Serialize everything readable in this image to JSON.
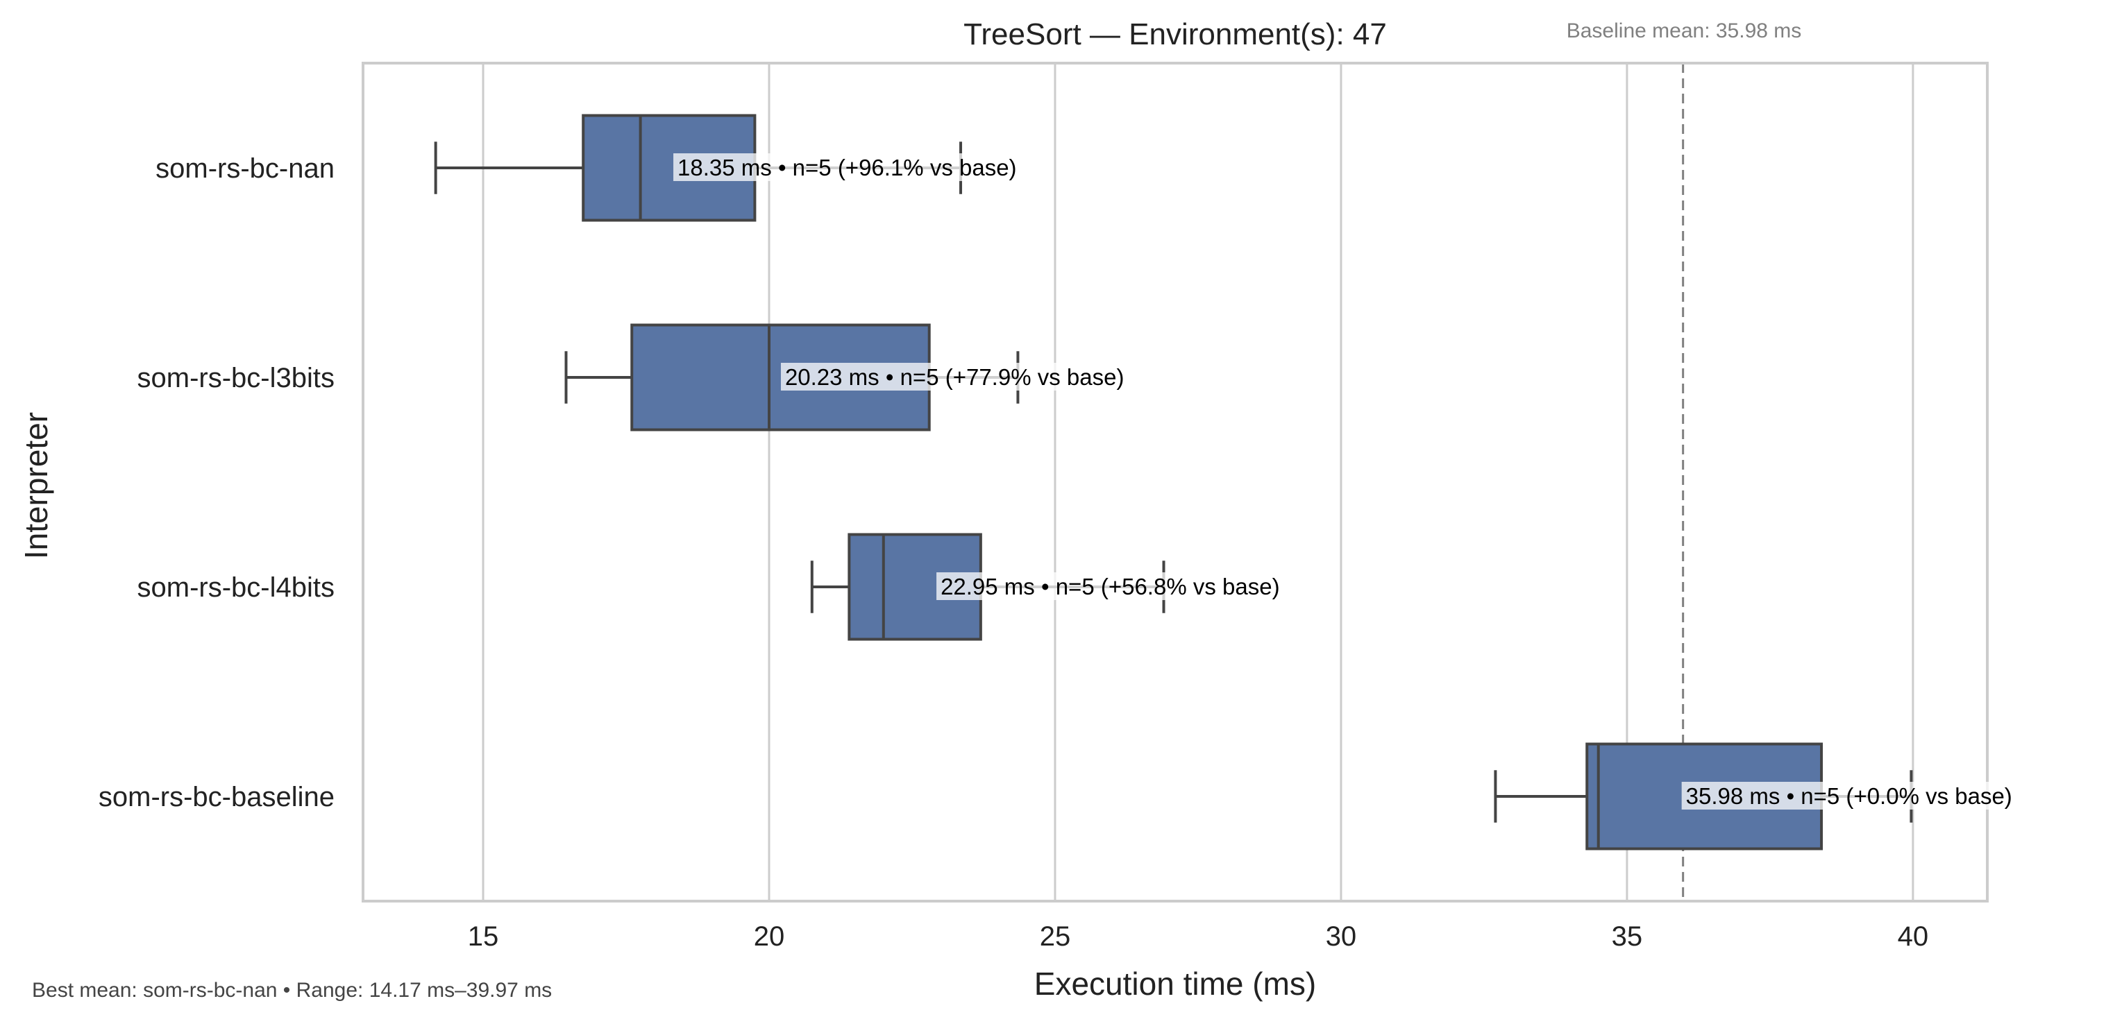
{
  "chart_data": {
    "type": "box",
    "title": "TreeSort — Environment(s): 47",
    "xlabel": "Execution time (ms)",
    "ylabel": "Interpreter",
    "xlim": [
      12.9,
      41.3
    ],
    "xticks": [
      15,
      20,
      25,
      30,
      35,
      40
    ],
    "grid": "vertical",
    "orientation": "horizontal",
    "box_color": "#5975a4",
    "edge_color": "#444444",
    "categories": [
      "som-rs-bc-nan",
      "som-rs-bc-l3bits",
      "som-rs-bc-l4bits",
      "som-rs-bc-baseline"
    ],
    "boxes": [
      {
        "category": "som-rs-bc-nan",
        "whisker_low": 14.17,
        "q1": 16.75,
        "median": 17.75,
        "q3": 19.75,
        "whisker_high": 23.35,
        "annotation": "18.35 ms • n=5 (+96.1% vs base)",
        "annotation_x": 18.35
      },
      {
        "category": "som-rs-bc-l3bits",
        "whisker_low": 16.45,
        "q1": 17.6,
        "median": 20.0,
        "q3": 22.8,
        "whisker_high": 24.35,
        "annotation": "20.23 ms • n=5 (+77.9% vs base)",
        "annotation_x": 20.23
      },
      {
        "category": "som-rs-bc-l4bits",
        "whisker_low": 20.75,
        "q1": 21.4,
        "median": 22.0,
        "q3": 23.7,
        "whisker_high": 26.9,
        "annotation": "22.95 ms • n=5 (+56.8% vs base)",
        "annotation_x": 22.95
      },
      {
        "category": "som-rs-bc-baseline",
        "whisker_low": 32.7,
        "q1": 34.3,
        "median": 34.5,
        "q3": 38.4,
        "whisker_high": 39.97,
        "annotation": "35.98 ms • n=5 (+0.0% vs base)",
        "annotation_x": 35.98
      }
    ],
    "baseline": {
      "value": 35.98,
      "label": "Baseline mean: 35.98 ms",
      "color": "#808080"
    },
    "footnote": "Best mean: som-rs-bc-nan • Range: 14.17 ms–39.97 ms"
  }
}
